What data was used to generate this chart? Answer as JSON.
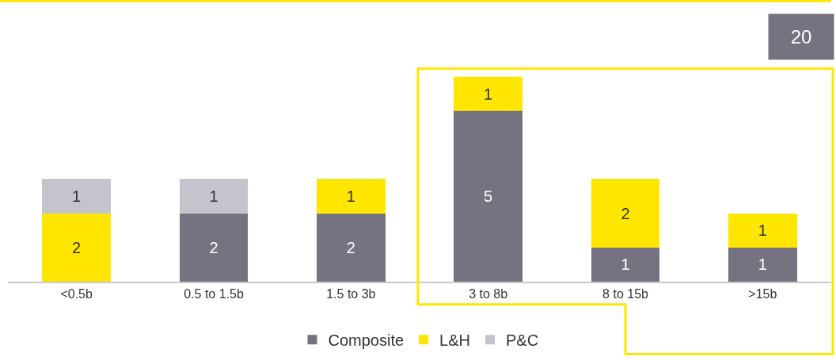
{
  "chart_data": {
    "type": "bar",
    "stacked": true,
    "data_labels": true,
    "legend": "bottom",
    "categories": [
      "<0.5b",
      "0.5 to 1.5b",
      "1.5 to 3b",
      "3 to 8b",
      "8 to 15b",
      ">15b"
    ],
    "series": [
      {
        "name": "Composite",
        "color": "#75737f",
        "values": [
          null,
          2,
          2,
          5,
          1,
          1
        ]
      },
      {
        "name": "L&H",
        "color": "#ffe600",
        "values": [
          2,
          null,
          1,
          1,
          2,
          1
        ]
      },
      {
        "name": "P&C",
        "color": "#c4c4cc",
        "values": [
          1,
          1,
          null,
          null,
          null,
          null
        ]
      }
    ],
    "annotations": [
      "20"
    ]
  }
}
